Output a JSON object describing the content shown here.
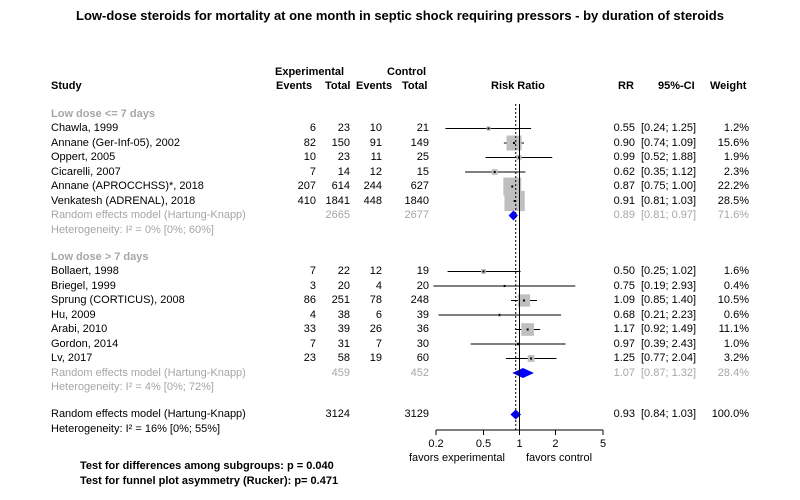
{
  "title": "Low-dose steroids for mortality at one month in septic shock requiring pressors - by duration of steroids",
  "header": {
    "study": "Study",
    "experimental": "Experimental",
    "control": "Control",
    "events": "Events",
    "total": "Total",
    "risk_ratio": "Risk Ratio",
    "rr": "RR",
    "ci": "95%-CI",
    "weight": "Weight"
  },
  "chart_data": {
    "type": "forest",
    "axis": {
      "scale": "log",
      "ticks": [
        0.2,
        0.5,
        1,
        2,
        5
      ],
      "tick_labels": [
        "0.2",
        "0.5",
        "1",
        "2",
        "5"
      ],
      "xlim": [
        0.2,
        5
      ],
      "left_label": "favors experimental",
      "right_label": "favors control",
      "reference_line": 1,
      "overall_line": 0.93
    },
    "subgroups": [
      {
        "label": "Low dose <= 7 days",
        "studies": [
          {
            "study": "Chawla, 1999",
            "e_ev": "6",
            "e_tot": "23",
            "c_ev": "10",
            "c_tot": "21",
            "rr": 0.55,
            "lo": 0.24,
            "hi": 1.25,
            "rr_text": "0.55",
            "ci_text": "[0.24; 1.25]",
            "weight": "1.2%",
            "w": 1.2
          },
          {
            "study": "Annane (Ger-Inf-05), 2002",
            "e_ev": "82",
            "e_tot": "150",
            "c_ev": "91",
            "c_tot": "149",
            "rr": 0.9,
            "lo": 0.74,
            "hi": 1.09,
            "rr_text": "0.90",
            "ci_text": "[0.74; 1.09]",
            "weight": "15.6%",
            "w": 15.6
          },
          {
            "study": "Oppert, 2005",
            "e_ev": "10",
            "e_tot": "23",
            "c_ev": "11",
            "c_tot": "25",
            "rr": 0.99,
            "lo": 0.52,
            "hi": 1.88,
            "rr_text": "0.99",
            "ci_text": "[0.52; 1.88]",
            "weight": "1.9%",
            "w": 1.9
          },
          {
            "study": "Cicarelli, 2007",
            "e_ev": "7",
            "e_tot": "14",
            "c_ev": "12",
            "c_tot": "15",
            "rr": 0.62,
            "lo": 0.35,
            "hi": 1.12,
            "rr_text": "0.62",
            "ci_text": "[0.35; 1.12]",
            "weight": "2.3%",
            "w": 2.3
          },
          {
            "study": "Annane (APROCCHSS)*, 2018",
            "e_ev": "207",
            "e_tot": "614",
            "c_ev": "244",
            "c_tot": "627",
            "rr": 0.87,
            "lo": 0.75,
            "hi": 1.0,
            "rr_text": "0.87",
            "ci_text": "[0.75; 1.00]",
            "weight": "22.2%",
            "w": 22.2
          },
          {
            "study": "Venkatesh  (ADRENAL), 2018",
            "e_ev": "410",
            "e_tot": "1841",
            "c_ev": "448",
            "c_tot": "1840",
            "rr": 0.91,
            "lo": 0.81,
            "hi": 1.03,
            "rr_text": "0.91",
            "ci_text": "[0.81; 1.03]",
            "weight": "28.5%",
            "w": 28.5
          }
        ],
        "random": {
          "label": "Random effects model  (Hartung-Knapp)",
          "e_tot": "2665",
          "c_tot": "2677",
          "rr": 0.89,
          "lo": 0.81,
          "hi": 0.97,
          "rr_text": "0.89",
          "ci_text": "[0.81; 0.97]",
          "weight": "71.6%"
        },
        "heterogeneity": "Heterogeneity: I² = 0% [0%; 60%]"
      },
      {
        "label": "Low dose > 7 days",
        "studies": [
          {
            "study": "Bollaert, 1998",
            "e_ev": "7",
            "e_tot": "22",
            "c_ev": "12",
            "c_tot": "19",
            "rr": 0.5,
            "lo": 0.25,
            "hi": 1.02,
            "rr_text": "0.50",
            "ci_text": "[0.25; 1.02]",
            "weight": "1.6%",
            "w": 1.6
          },
          {
            "study": "Briegel, 1999",
            "e_ev": "3",
            "e_tot": "20",
            "c_ev": "4",
            "c_tot": "20",
            "rr": 0.75,
            "lo": 0.19,
            "hi": 2.93,
            "rr_text": "0.75",
            "ci_text": "[0.19; 2.93]",
            "weight": "0.4%",
            "w": 0.4
          },
          {
            "study": "Sprung (CORTICUS), 2008",
            "e_ev": "86",
            "e_tot": "251",
            "c_ev": "78",
            "c_tot": "248",
            "rr": 1.09,
            "lo": 0.85,
            "hi": 1.4,
            "rr_text": "1.09",
            "ci_text": "[0.85; 1.40]",
            "weight": "10.5%",
            "w": 10.5
          },
          {
            "study": "Hu, 2009",
            "e_ev": "4",
            "e_tot": "38",
            "c_ev": "6",
            "c_tot": "39",
            "rr": 0.68,
            "lo": 0.21,
            "hi": 2.23,
            "rr_text": "0.68",
            "ci_text": "[0.21; 2.23]",
            "weight": "0.6%",
            "w": 0.6
          },
          {
            "study": "Arabi, 2010",
            "e_ev": "33",
            "e_tot": "39",
            "c_ev": "26",
            "c_tot": "36",
            "rr": 1.17,
            "lo": 0.92,
            "hi": 1.49,
            "rr_text": "1.17",
            "ci_text": "[0.92; 1.49]",
            "weight": "11.1%",
            "w": 11.1
          },
          {
            "study": "Gordon, 2014",
            "e_ev": "7",
            "e_tot": "31",
            "c_ev": "7",
            "c_tot": "30",
            "rr": 0.97,
            "lo": 0.39,
            "hi": 2.43,
            "rr_text": "0.97",
            "ci_text": "[0.39; 2.43]",
            "weight": "1.0%",
            "w": 1.0
          },
          {
            "study": "Lv, 2017",
            "e_ev": "23",
            "e_tot": "58",
            "c_ev": "19",
            "c_tot": "60",
            "rr": 1.25,
            "lo": 0.77,
            "hi": 2.04,
            "rr_text": "1.25",
            "ci_text": "[0.77; 2.04]",
            "weight": "3.2%",
            "w": 3.2
          }
        ],
        "random": {
          "label": "Random effects model  (Hartung-Knapp)",
          "e_tot": "459",
          "c_tot": "452",
          "rr": 1.07,
          "lo": 0.87,
          "hi": 1.32,
          "rr_text": "1.07",
          "ci_text": "[0.87; 1.32]",
          "weight": "28.4%"
        },
        "heterogeneity": "Heterogeneity: I² = 4% [0%; 72%]"
      }
    ],
    "overall": {
      "label": "Random effects model  (Hartung-Knapp)",
      "e_tot": "3124",
      "c_tot": "3129",
      "rr": 0.93,
      "lo": 0.84,
      "hi": 1.03,
      "rr_text": "0.93",
      "ci_text": "[0.84; 1.03]",
      "weight": "100.0%"
    },
    "overall_heterogeneity": "Heterogeneity: I² = 16% [0%; 55%]",
    "colors": {
      "diamond": "#0000ff",
      "square": "#bfbfbf",
      "gray_text": "#a6a6a6"
    }
  },
  "footer": {
    "subgroup_test": "Test for differences among subgroups: p = 0.040",
    "funnel_test": "Test for funnel plot asymmetry (Rucker): p= 0.471"
  }
}
